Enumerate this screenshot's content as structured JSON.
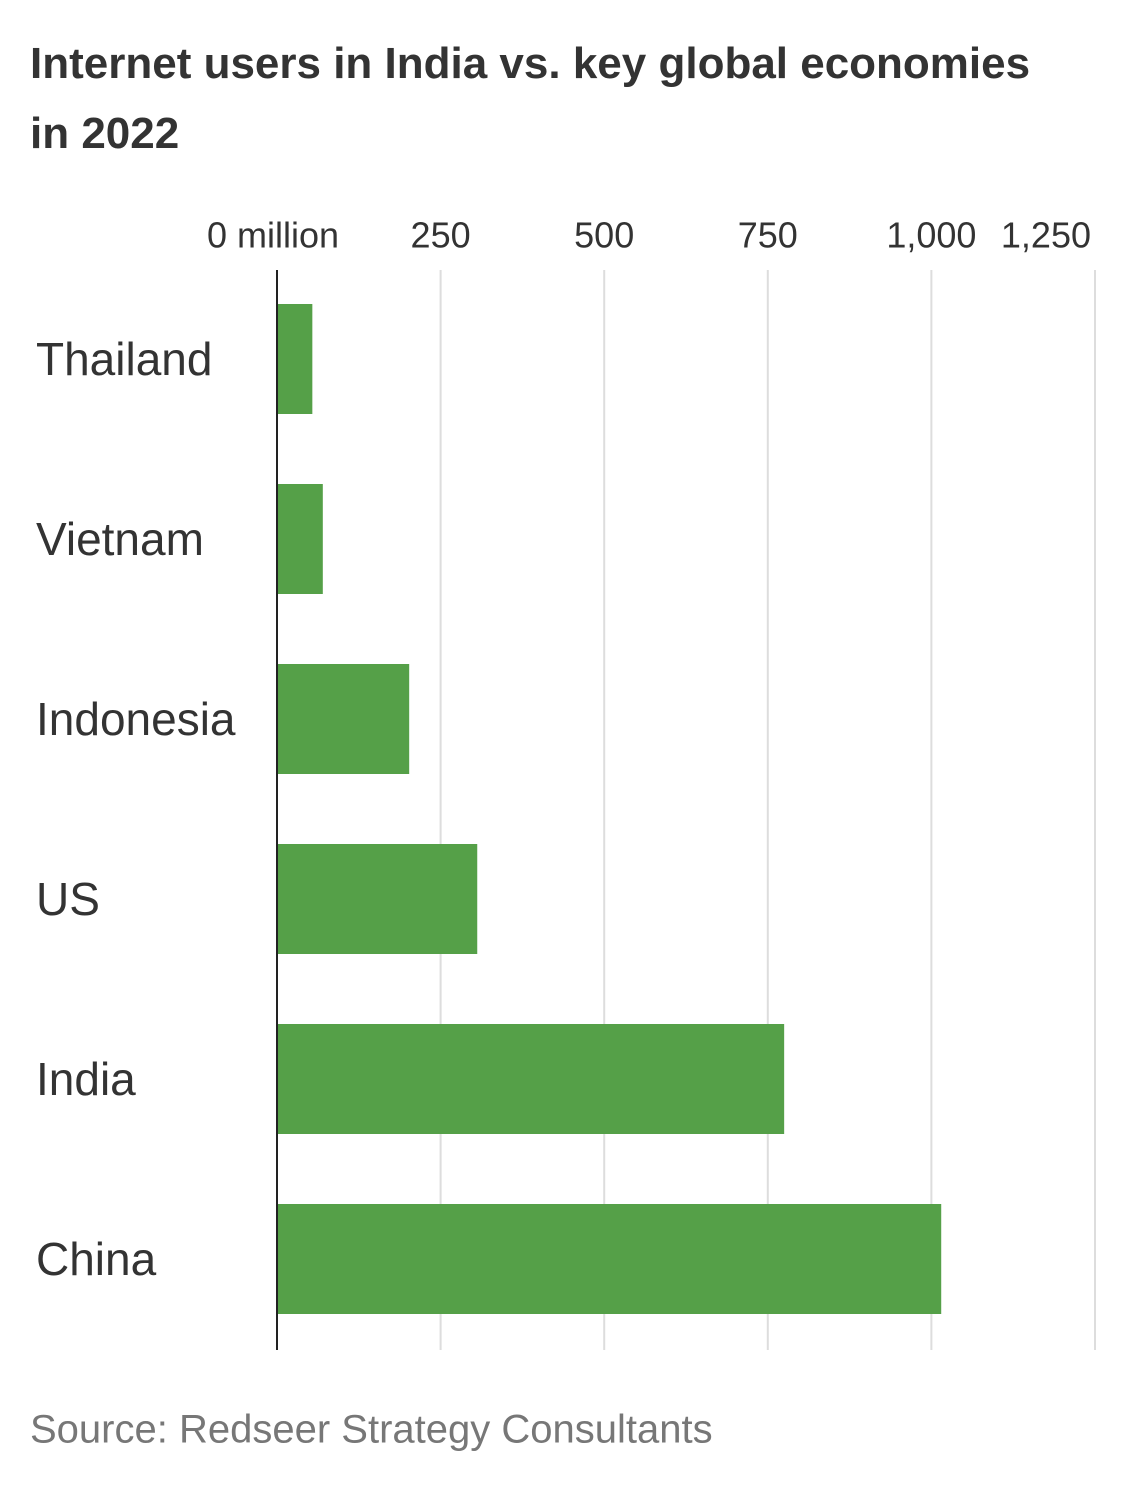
{
  "chart_data": {
    "type": "bar",
    "orientation": "horizontal",
    "title": "Internet users in India vs. key global economies in 2022",
    "categories": [
      "Thailand",
      "Vietnam",
      "Indonesia",
      "US",
      "India",
      "China"
    ],
    "values": [
      54,
      70,
      202,
      306,
      775,
      1015
    ],
    "color": "#55a048",
    "xlim": [
      0,
      1250
    ],
    "xticks": [
      {
        "value": 0,
        "label": "0 million"
      },
      250,
      500,
      750,
      {
        "value": 1000,
        "label": "1,000"
      },
      {
        "value": 1250,
        "label": "1,250"
      }
    ],
    "grid": true,
    "source": "Source: Redseer Strategy Consultants"
  }
}
